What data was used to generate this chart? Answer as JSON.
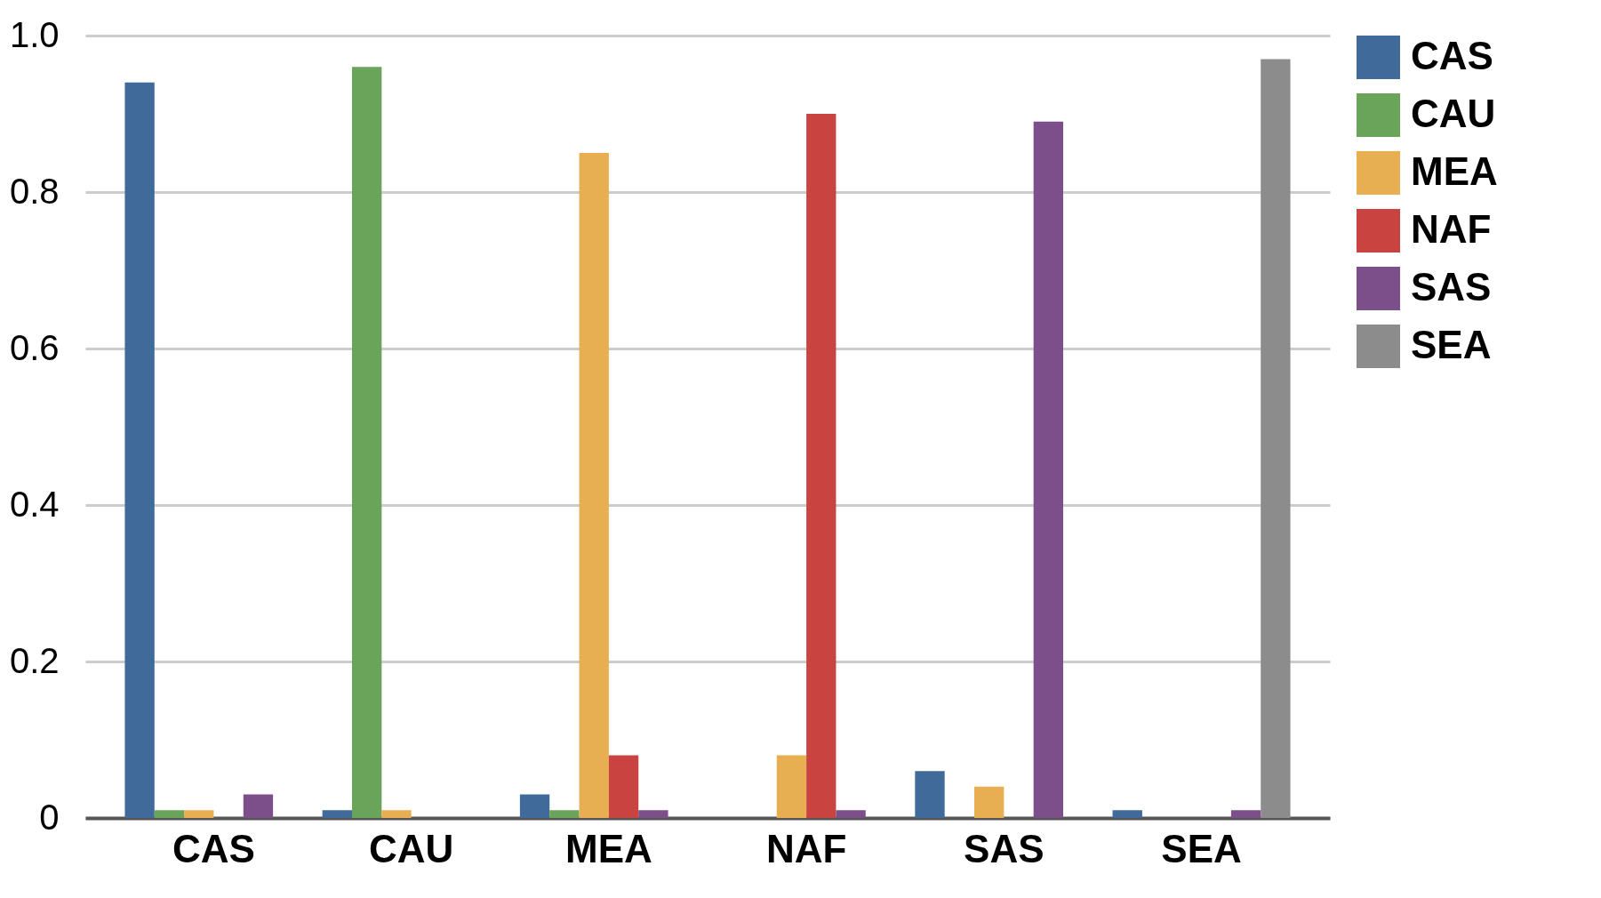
{
  "chart_data": {
    "type": "bar",
    "categories": [
      "CAS",
      "CAU",
      "MEA",
      "NAF",
      "SAS",
      "SEA"
    ],
    "series": [
      {
        "name": "CAS",
        "color": "#3f6a9a",
        "values": [
          0.94,
          0.01,
          0.03,
          0,
          0.06,
          0.01
        ]
      },
      {
        "name": "CAU",
        "color": "#6aa35a",
        "values": [
          0.01,
          0.96,
          0.01,
          0,
          0,
          0
        ]
      },
      {
        "name": "MEA",
        "color": "#e8ae52",
        "values": [
          0.01,
          0.01,
          0.85,
          0.08,
          0.04,
          0
        ]
      },
      {
        "name": "NAF",
        "color": "#c94340",
        "values": [
          0,
          0,
          0.08,
          0.9,
          0,
          0
        ]
      },
      {
        "name": "SAS",
        "color": "#7d4f8a",
        "values": [
          0.03,
          0,
          0.01,
          0.01,
          0.89,
          0.01
        ]
      },
      {
        "name": "SEA",
        "color": "#8c8c8c",
        "values": [
          0,
          0,
          0,
          0,
          0,
          0.97
        ]
      }
    ],
    "ylim": [
      0,
      1
    ],
    "yticks": [
      0,
      {
        "value": 0.2,
        "label": "0.2"
      },
      {
        "value": 0.4,
        "label": "0.4"
      },
      {
        "value": 0.6,
        "label": "0.6"
      },
      {
        "value": 0.8,
        "label": "0.8"
      },
      {
        "value": 1,
        "label": "1.0"
      }
    ],
    "grid": "y",
    "legend": "right"
  }
}
